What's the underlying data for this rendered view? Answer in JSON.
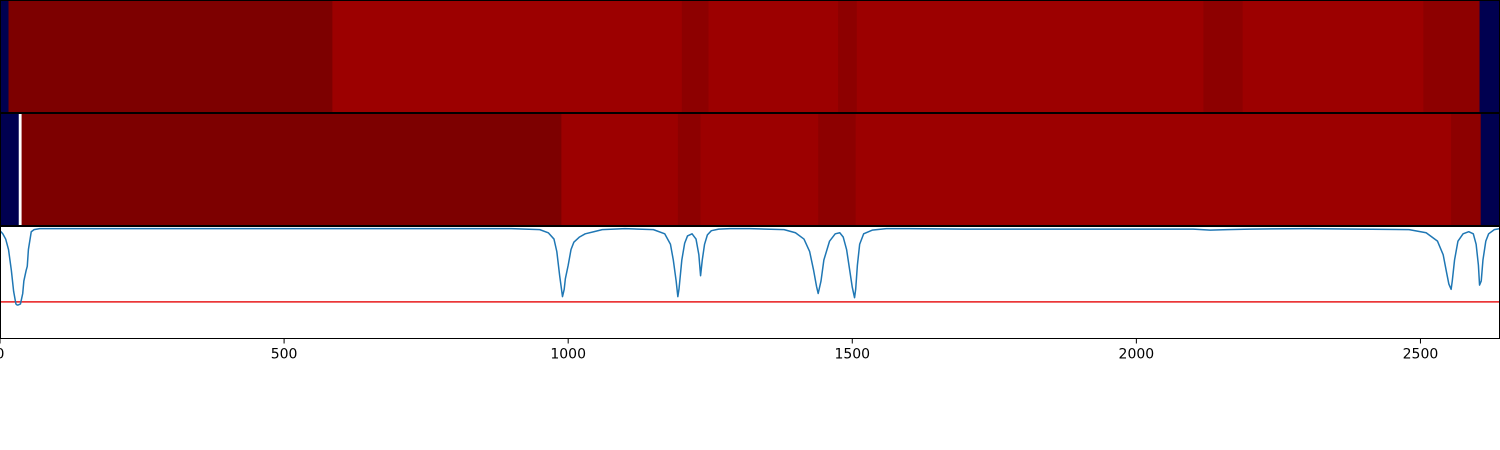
{
  "chart_data": [
    {
      "type": "heatmap",
      "xlim": [
        0,
        2640
      ],
      "colormap": "seismic",
      "colors": {
        "edge": "#000050",
        "deep": "#7d0000",
        "main": "#9c0000",
        "mid": "#8d0000",
        "marker": "#ffffff"
      },
      "segments": [
        {
          "x0": 0,
          "x1": 15,
          "color": "edge"
        },
        {
          "x0": 15,
          "x1": 585,
          "color": "deep"
        },
        {
          "x0": 585,
          "x1": 1200,
          "color": "main"
        },
        {
          "x0": 1200,
          "x1": 1247,
          "color": "mid"
        },
        {
          "x0": 1247,
          "x1": 1475,
          "color": "main"
        },
        {
          "x0": 1475,
          "x1": 1508,
          "color": "mid"
        },
        {
          "x0": 1508,
          "x1": 2118,
          "color": "main"
        },
        {
          "x0": 2118,
          "x1": 2187,
          "color": "mid"
        },
        {
          "x0": 2187,
          "x1": 2505,
          "color": "main"
        },
        {
          "x0": 2505,
          "x1": 2604,
          "color": "mid"
        },
        {
          "x0": 2604,
          "x1": 2640,
          "color": "edge"
        }
      ]
    },
    {
      "type": "heatmap",
      "xlim": [
        0,
        2640
      ],
      "colormap": "seismic",
      "colors": {
        "edge": "#000050",
        "deep": "#7d0000",
        "main": "#9c0000",
        "mid": "#8d0000",
        "marker": "#ffffff"
      },
      "segments": [
        {
          "x0": 0,
          "x1": 33,
          "color": "edge"
        },
        {
          "x0": 33,
          "x1": 38,
          "color": "marker"
        },
        {
          "x0": 38,
          "x1": 988,
          "color": "deep"
        },
        {
          "x0": 988,
          "x1": 1193,
          "color": "main"
        },
        {
          "x0": 1193,
          "x1": 1233,
          "color": "mid"
        },
        {
          "x0": 1233,
          "x1": 1440,
          "color": "main"
        },
        {
          "x0": 1440,
          "x1": 1506,
          "color": "mid"
        },
        {
          "x0": 1506,
          "x1": 2554,
          "color": "main"
        },
        {
          "x0": 2554,
          "x1": 2606,
          "color": "mid"
        },
        {
          "x0": 2606,
          "x1": 2640,
          "color": "edge"
        }
      ]
    },
    {
      "type": "line",
      "xlim": [
        0,
        2640
      ],
      "ylim": [
        -1.05,
        0.02
      ],
      "xticks": [
        0,
        500,
        1000,
        1500,
        2000,
        2500
      ],
      "threshold": {
        "y": -0.7,
        "color": "#e8191b"
      },
      "series": [
        {
          "color": "#1f77b4",
          "x": [
            0,
            5,
            10,
            15,
            20,
            24,
            28,
            30,
            32,
            36,
            40,
            42,
            44,
            46,
            48,
            50,
            55,
            60,
            70,
            80,
            900,
            950,
            965,
            975,
            980,
            985,
            990,
            993,
            995,
            1000,
            1005,
            1010,
            1020,
            1030,
            1045,
            1060,
            1080,
            1100,
            1150,
            1170,
            1180,
            1185,
            1190,
            1193,
            1195,
            1200,
            1205,
            1210,
            1218,
            1225,
            1230,
            1233,
            1236,
            1240,
            1245,
            1252,
            1265,
            1285,
            1320,
            1380,
            1400,
            1415,
            1425,
            1432,
            1437,
            1440,
            1445,
            1450,
            1460,
            1470,
            1478,
            1484,
            1490,
            1495,
            1500,
            1504,
            1506,
            1509,
            1513,
            1520,
            1535,
            1560,
            1600,
            1700,
            2100,
            2130,
            2160,
            2200,
            2300,
            2480,
            2510,
            2530,
            2540,
            2546,
            2550,
            2554,
            2556,
            2560,
            2566,
            2575,
            2585,
            2593,
            2598,
            2602,
            2604,
            2607,
            2610,
            2615,
            2620,
            2630,
            2640
          ],
          "y": [
            -0.02,
            -0.05,
            -0.1,
            -0.2,
            -0.4,
            -0.6,
            -0.72,
            -0.73,
            -0.73,
            -0.72,
            -0.62,
            -0.5,
            -0.45,
            -0.4,
            -0.36,
            -0.2,
            -0.03,
            -0.01,
            0,
            0,
            0,
            -0.01,
            -0.04,
            -0.1,
            -0.22,
            -0.45,
            -0.65,
            -0.58,
            -0.48,
            -0.35,
            -0.2,
            -0.13,
            -0.08,
            -0.05,
            -0.03,
            -0.01,
            -0.005,
            0,
            -0.01,
            -0.05,
            -0.15,
            -0.3,
            -0.5,
            -0.65,
            -0.58,
            -0.3,
            -0.14,
            -0.07,
            -0.05,
            -0.1,
            -0.25,
            -0.45,
            -0.3,
            -0.15,
            -0.06,
            -0.02,
            -0.005,
            0,
            0,
            -0.01,
            -0.04,
            -0.1,
            -0.22,
            -0.4,
            -0.55,
            -0.62,
            -0.5,
            -0.3,
            -0.12,
            -0.05,
            -0.04,
            -0.08,
            -0.2,
            -0.38,
            -0.56,
            -0.66,
            -0.58,
            -0.35,
            -0.15,
            -0.05,
            -0.015,
            0,
            0,
            -0.005,
            -0.005,
            -0.015,
            -0.01,
            -0.005,
            0,
            -0.01,
            -0.04,
            -0.12,
            -0.25,
            -0.42,
            -0.53,
            -0.58,
            -0.5,
            -0.3,
            -0.12,
            -0.05,
            -0.03,
            -0.05,
            -0.15,
            -0.35,
            -0.54,
            -0.5,
            -0.3,
            -0.12,
            -0.05,
            -0.01,
            0
          ]
        }
      ]
    }
  ]
}
